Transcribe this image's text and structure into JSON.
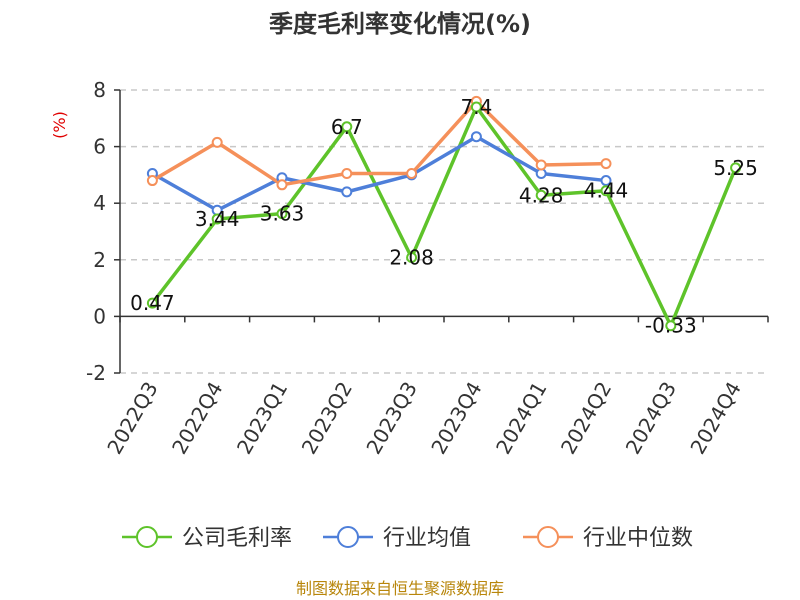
{
  "chart_data": {
    "type": "line",
    "title": "季度毛利率变化情况(%)",
    "ylabel": "(%)",
    "ylim": [
      -2,
      8
    ],
    "yticks": [
      -2,
      0,
      2,
      4,
      6,
      8
    ],
    "categories": [
      "2022Q3",
      "2022Q4",
      "2023Q1",
      "2023Q2",
      "2023Q3",
      "2023Q4",
      "2024Q1",
      "2024Q2",
      "2024Q3",
      "2024Q4"
    ],
    "grid": true,
    "legend_position": "bottom",
    "series": [
      {
        "name": "公司毛利率",
        "color": "#5ec32a",
        "values": [
          0.47,
          3.44,
          3.63,
          6.7,
          2.08,
          7.4,
          4.28,
          4.44,
          -0.33,
          5.25
        ],
        "labels": [
          "0.47",
          "3.44",
          "3.63",
          "6.7",
          "2.08",
          "7.4",
          "4.28",
          "4.44",
          "-0.33",
          "5.25"
        ]
      },
      {
        "name": "行业均值",
        "color": "#4e7fd9",
        "values": [
          5.05,
          3.75,
          4.9,
          4.4,
          5.0,
          6.35,
          5.05,
          4.8,
          null,
          null
        ]
      },
      {
        "name": "行业中位数",
        "color": "#f5905a",
        "values": [
          4.8,
          6.15,
          4.65,
          5.05,
          5.05,
          7.6,
          5.35,
          5.4,
          null,
          null
        ]
      }
    ]
  },
  "source_note": "制图数据来自恒生聚源数据库"
}
